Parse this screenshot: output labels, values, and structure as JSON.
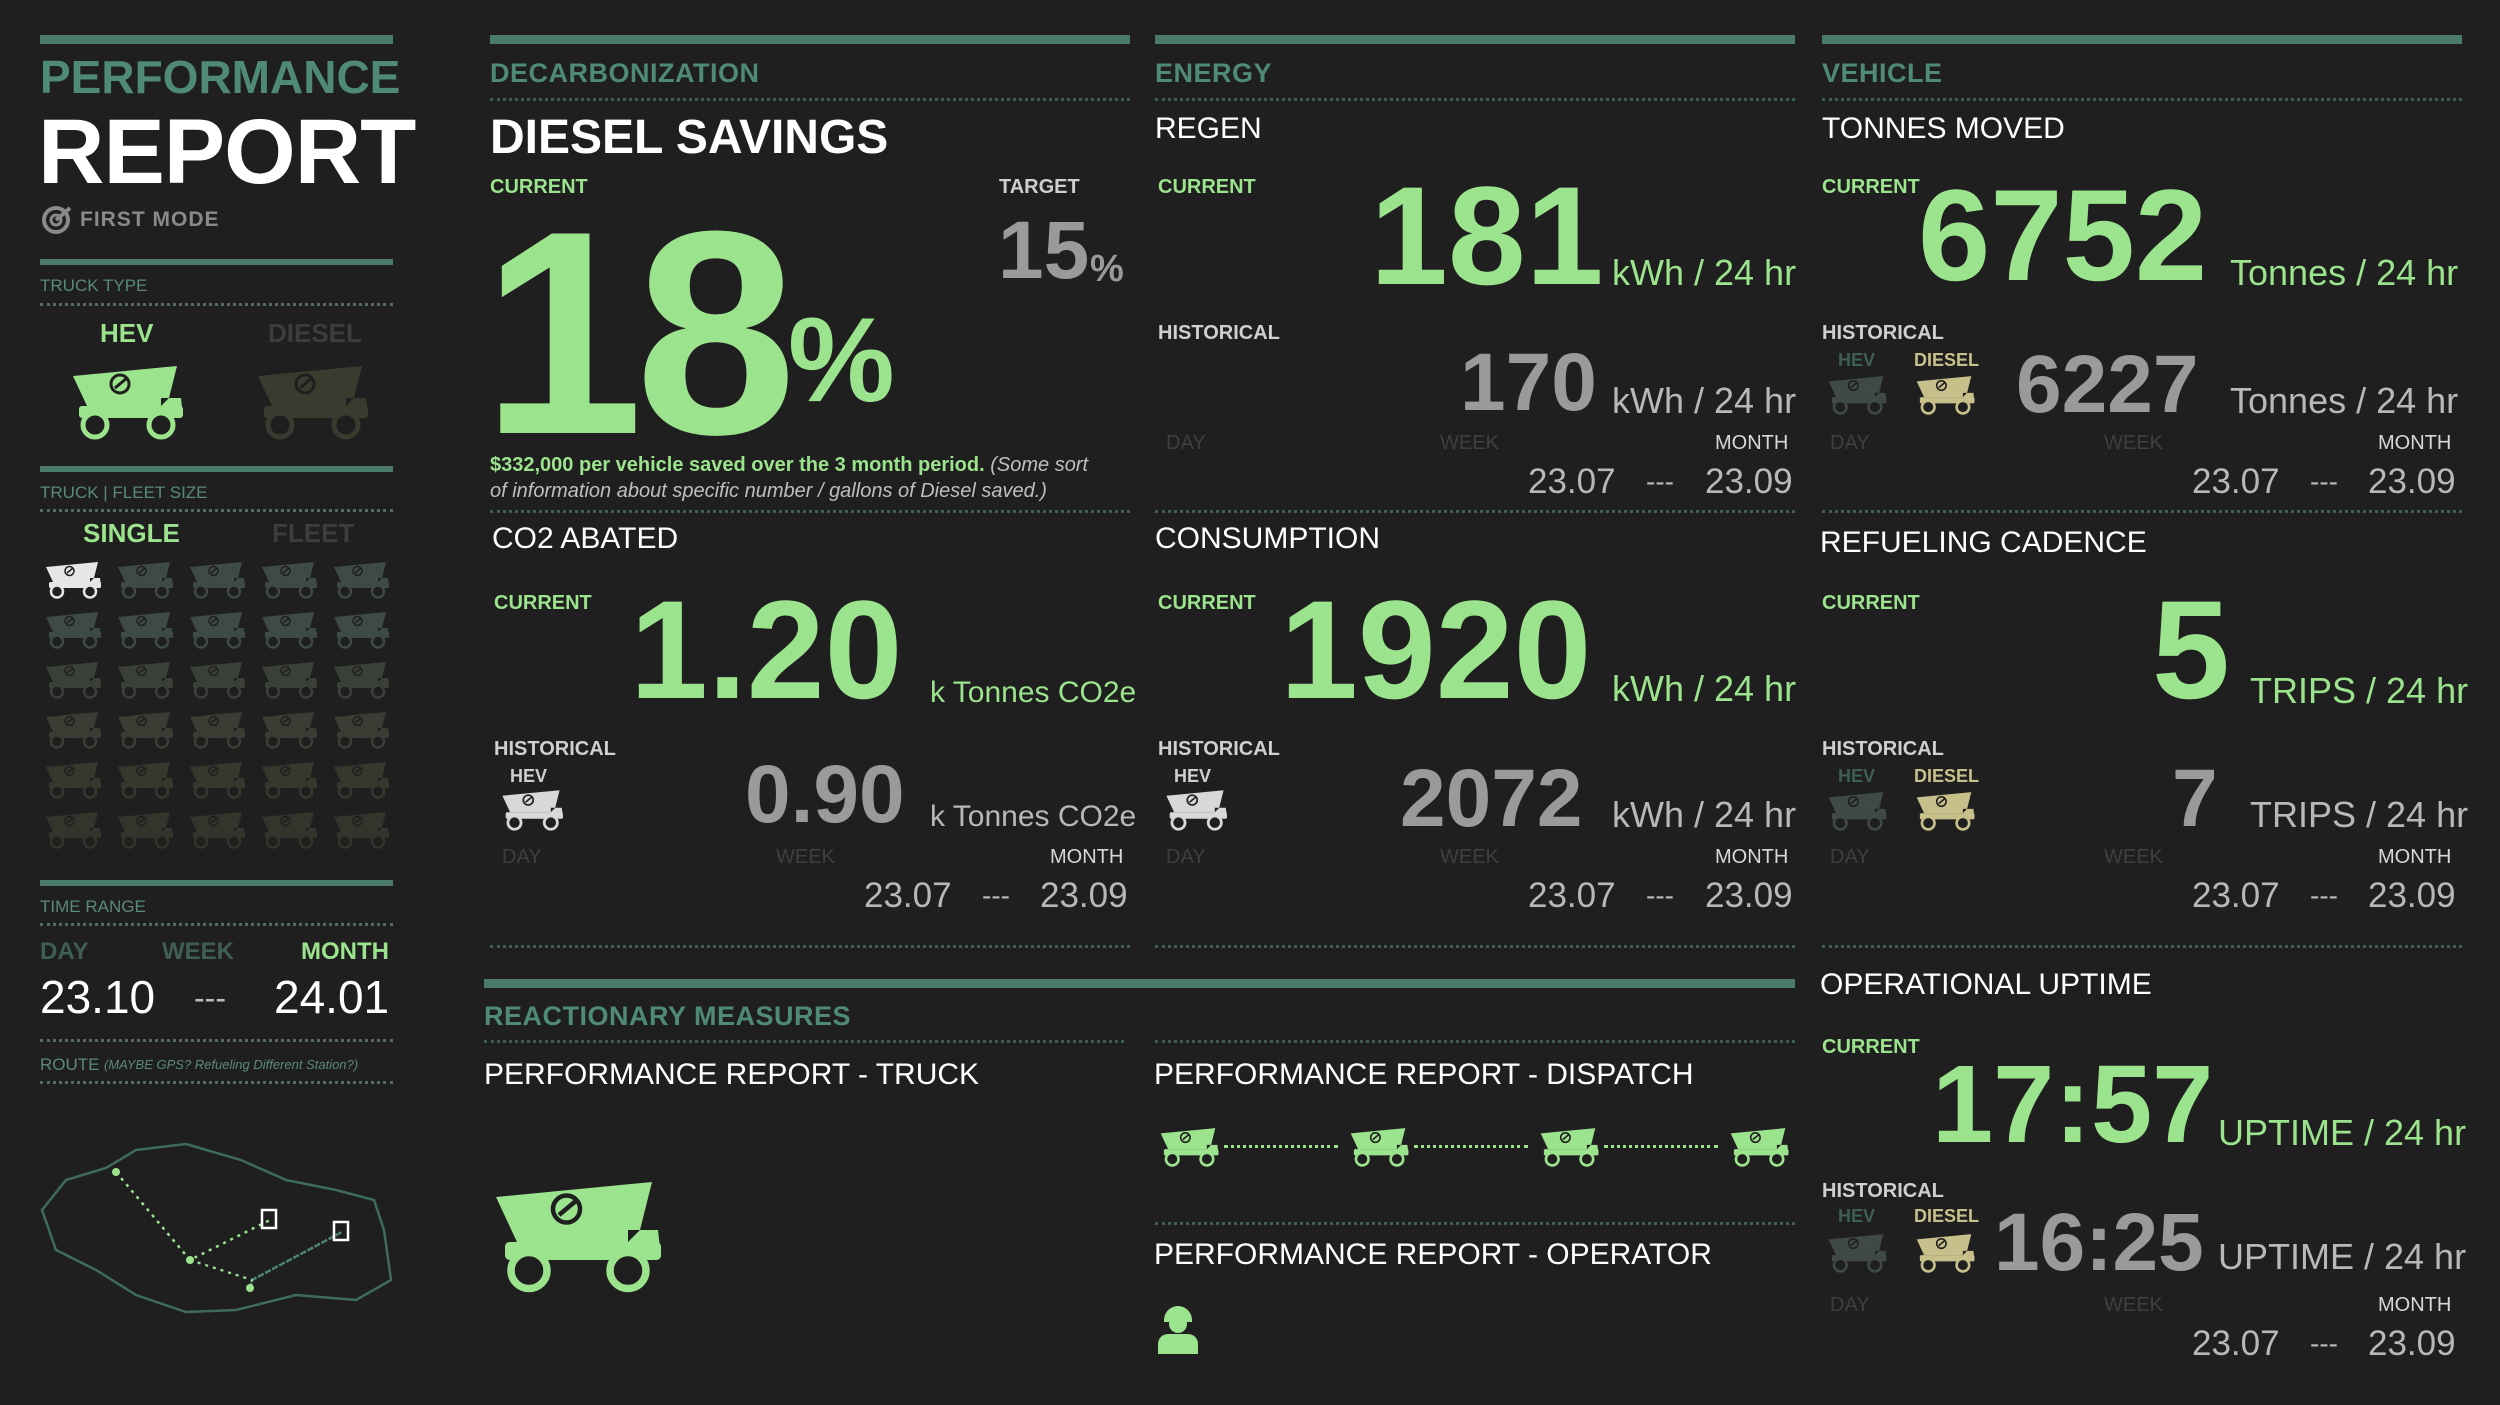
{
  "colors": {
    "accent": "#9be38d",
    "teal": "#4f8a79",
    "diesel": "#c8c08a",
    "bg": "#1f1f1f"
  },
  "sidebar": {
    "title_line1": "PERFORMANCE",
    "title_line2": "REPORT",
    "brand": "FIRST MODE",
    "truck_type_label": "TRUCK TYPE",
    "truck_type_hev": "HEV",
    "truck_type_diesel": "DIESEL",
    "fleet_size_label": "TRUCK | FLEET SIZE",
    "fleet_single": "SINGLE",
    "fleet_fleet": "FLEET",
    "time_range_label": "TIME RANGE",
    "time_day": "DAY",
    "time_week": "WEEK",
    "time_month": "MONTH",
    "time_from": "23.10",
    "time_sep": "---",
    "time_to": "24.01",
    "route_label": "ROUTE",
    "route_note": "(MAYBE GPS? Refueling Different Station?)"
  },
  "decarb": {
    "section": "DECARBONIZATION",
    "diesel_title": "DIESEL SAVINGS",
    "current_label": "CURRENT",
    "target_label": "TARGET",
    "current_value": "18",
    "current_unit": "%",
    "target_value": "15",
    "target_unit": "%",
    "note_bold": "$332,000 per vehicle saved over the 3 month period.",
    "note_italic_1": "(Some sort",
    "note_italic_2": "of information about specific number / gallons of Diesel saved.)",
    "co2_title": "CO2 ABATED",
    "co2_current_label": "CURRENT",
    "co2_current": "1.20",
    "co2_unit": "k Tonnes CO2e",
    "co2_hist_label": "HISTORICAL",
    "co2_hist_hev": "HEV",
    "co2_hist": "0.90",
    "co2_hist_unit": "k Tonnes CO2e",
    "day": "DAY",
    "week": "WEEK",
    "month": "MONTH",
    "from": "23.07",
    "sep": "---",
    "to": "23.09"
  },
  "energy": {
    "section": "ENERGY",
    "regen_title": "REGEN",
    "regen_current_label": "CURRENT",
    "regen_current": "181",
    "regen_unit": "kWh / 24 hr",
    "regen_hist_label": "HISTORICAL",
    "regen_hist": "170",
    "regen_hist_unit": "kWh / 24 hr",
    "cons_title": "CONSUMPTION",
    "cons_current_label": "CURRENT",
    "cons_current": "1920",
    "cons_unit": "kWh / 24 hr",
    "cons_hist_label": "HISTORICAL",
    "cons_hist_hev": "HEV",
    "cons_hist": "2072",
    "cons_hist_unit": "kWh / 24 hr",
    "day": "DAY",
    "week": "WEEK",
    "month": "MONTH",
    "from": "23.07",
    "sep": "---",
    "to": "23.09"
  },
  "vehicle": {
    "section": "VEHICLE",
    "tonnes_title": "TONNES MOVED",
    "tonnes_current_label": "CURRENT",
    "tonnes_current": "6752",
    "tonnes_unit": "Tonnes / 24 hr",
    "tonnes_hist_label": "HISTORICAL",
    "hev": "HEV",
    "diesel": "DIESEL",
    "tonnes_hist": "6227",
    "tonnes_hist_unit": "Tonnes / 24 hr",
    "refuel_title": "REFUELING CADENCE",
    "refuel_current_label": "CURRENT",
    "refuel_current": "5",
    "refuel_unit": "TRIPS / 24 hr",
    "refuel_hist_label": "HISTORICAL",
    "refuel_hist": "7",
    "refuel_hist_unit": "TRIPS / 24 hr",
    "uptime_title": "OPERATIONAL UPTIME",
    "uptime_current_label": "CURRENT",
    "uptime_current": "17:57",
    "uptime_unit": "UPTIME / 24 hr",
    "uptime_hist_label": "HISTORICAL",
    "uptime_hist": "16:25",
    "uptime_hist_unit": "UPTIME / 24 hr",
    "day": "DAY",
    "week": "WEEK",
    "month": "MONTH",
    "from": "23.07",
    "sep": "---",
    "to": "23.09"
  },
  "reactionary": {
    "section": "REACTIONARY MEASURES",
    "truck_title": "PERFORMANCE REPORT - TRUCK",
    "dispatch_title": "PERFORMANCE REPORT - DISPATCH",
    "operator_title": "PERFORMANCE REPORT - OPERATOR"
  }
}
